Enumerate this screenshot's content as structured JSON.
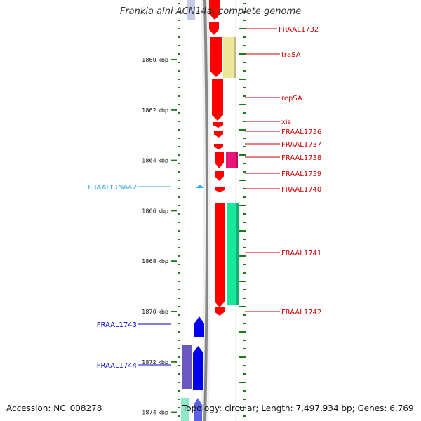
{
  "title": "Frankia alni ACN14a, complete genome",
  "accession": "Accession: NC_008278",
  "topology": "Topology: circular; Length: 7,497,934 bp; Genes: 6,769",
  "colors": {
    "backbone": "#888888",
    "tick": "#1a7a1a",
    "red": "#ff0000",
    "yellow": "#ede79a",
    "magenta": "#e8157a",
    "green": "#18e89a",
    "blue": "#0000ee",
    "slate": "#6a58c0",
    "trna": "#2aaee6",
    "label_red": "#cc0000",
    "label_blue": "#0000cc",
    "label_trna": "#2aaee6"
  },
  "kbp_ticks": [
    "1860 kbp",
    "1862 kbp",
    "1864 kbp",
    "1866 kbp",
    "1868 kbp",
    "1870 kbp",
    "1872 kbp",
    "1874 kbp"
  ],
  "genes": [
    {
      "name": "FRAAL1732",
      "lane": "red",
      "color": "red"
    },
    {
      "name": "traSA",
      "lane": "pale",
      "color": "yellow"
    },
    {
      "name": "repSA",
      "lane": "red",
      "color": "red"
    },
    {
      "name": "xis",
      "lane": "red",
      "color": "red"
    },
    {
      "name": "FRAAL1736",
      "lane": "red",
      "color": "red"
    },
    {
      "name": "FRAAL1737",
      "lane": "red",
      "color": "red"
    },
    {
      "name": "FRAAL1738",
      "lane": "pale",
      "color": "magenta"
    },
    {
      "name": "FRAAL1739",
      "lane": "red",
      "color": "red"
    },
    {
      "name": "FRAAL1740",
      "lane": "red",
      "color": "red"
    },
    {
      "name": "FRAALtRNA42",
      "lane": "left",
      "color": "trna"
    },
    {
      "name": "FRAAL1741",
      "lane": "pale",
      "color": "green"
    },
    {
      "name": "FRAAL1742",
      "lane": "red",
      "color": "red"
    },
    {
      "name": "FRAAL1743",
      "lane": "left",
      "color": "blue"
    },
    {
      "name": "FRAAL1744",
      "lane": "left",
      "color": "slate"
    }
  ]
}
